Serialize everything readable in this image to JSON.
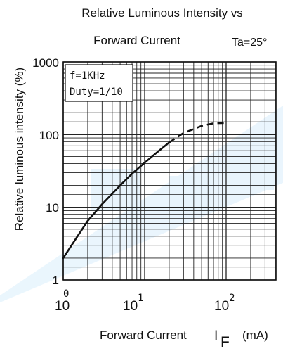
{
  "chart_data": {
    "type": "line",
    "title_line1": "Relative Luminous Intensity vs",
    "title_line2": "Forward Current",
    "condition": "Ta=25°",
    "legend_line1": "f=1KHz",
    "legend_line2": "Duty=1/10",
    "ylabel": "Relative luminous intensity  (%)",
    "xlabel": "Forward Current",
    "xlabel_symbol": "I",
    "xlabel_subscript": "F",
    "xlabel_unit": "(mA)",
    "x_scale": "log",
    "y_scale": "log",
    "xlim": [
      1,
      200
    ],
    "ylim": [
      1,
      1000
    ],
    "grid": true,
    "y_ticks": [
      "1",
      "10",
      "100",
      "1000"
    ],
    "x_ticks": [
      {
        "base": "10",
        "exp": "0"
      },
      {
        "base": "10",
        "exp": "1"
      },
      {
        "base": "10",
        "exp": "2"
      }
    ],
    "series": [
      {
        "style": "solid",
        "x": [
          1,
          1.5,
          2,
          3,
          5,
          7,
          10,
          15,
          20
        ],
        "y": [
          2,
          4,
          6.5,
          11,
          20,
          29,
          41,
          60,
          78
        ]
      },
      {
        "style": "dashed",
        "x": [
          20,
          30,
          50,
          70,
          100
        ],
        "y": [
          78,
          105,
          132,
          143,
          145
        ]
      }
    ],
    "watermark_color": "#cfe8fa"
  }
}
